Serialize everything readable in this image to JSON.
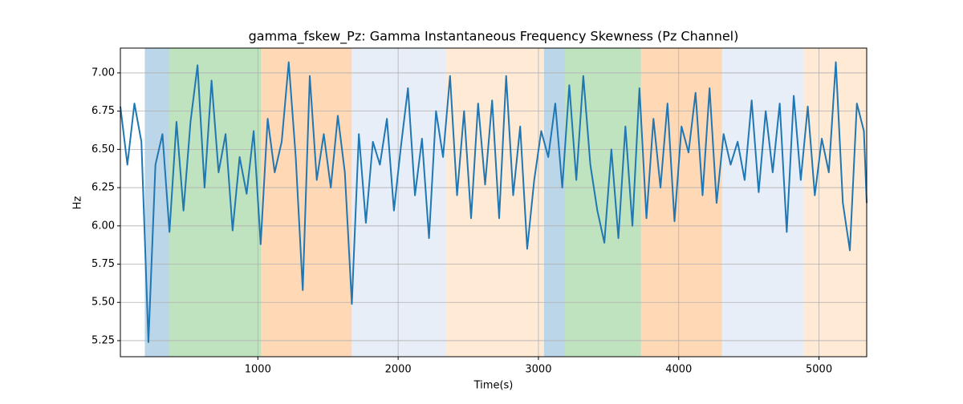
{
  "chart_data": {
    "type": "line",
    "title": "gamma_fskew_Pz: Gamma Instantaneous Frequency Skewness (Pz Channel)",
    "xlabel": "Time(s)",
    "ylabel": "Hz",
    "xlim": [
      20,
      5340
    ],
    "ylim": [
      5.145,
      7.162
    ],
    "xticks": [
      1000,
      2000,
      3000,
      4000,
      5000
    ],
    "yticks": [
      5.25,
      {
        "value": 5.5,
        "label": "5.50"
      },
      5.75,
      {
        "value": 6,
        "label": "6.00"
      },
      6.25,
      {
        "value": 6.5,
        "label": "6.50"
      },
      6.75,
      {
        "value": 7,
        "label": "7.00"
      }
    ],
    "grid": true,
    "spans": [
      {
        "xmin": 194,
        "xmax": 366,
        "color": "#1f77b4",
        "alpha": 0.3
      },
      {
        "xmin": 366,
        "xmax": 1023,
        "color": "#2ca02c",
        "alpha": 0.3
      },
      {
        "xmin": 1023,
        "xmax": 1669,
        "color": "#ff7f0e",
        "alpha": 0.3
      },
      {
        "xmin": 1669,
        "xmax": 2343,
        "color": "#aec7e8",
        "alpha": 0.3
      },
      {
        "xmin": 2343,
        "xmax": 3040,
        "color": "#ffbb78",
        "alpha": 0.3
      },
      {
        "xmin": 3040,
        "xmax": 3189,
        "color": "#1f77b4",
        "alpha": 0.3
      },
      {
        "xmin": 3189,
        "xmax": 3731,
        "color": "#2ca02c",
        "alpha": 0.3
      },
      {
        "xmin": 3731,
        "xmax": 4309,
        "color": "#ff7f0e",
        "alpha": 0.3
      },
      {
        "xmin": 4309,
        "xmax": 4891,
        "color": "#aec7e8",
        "alpha": 0.3
      },
      {
        "xmin": 4891,
        "xmax": 5340,
        "color": "#ffbb78",
        "alpha": 0.3
      }
    ],
    "series": [
      {
        "color": "#1f77b4",
        "x": [
          20,
          70,
          120,
          170,
          220,
          270,
          320,
          370,
          420,
          470,
          520,
          570,
          620,
          670,
          720,
          770,
          820,
          870,
          920,
          970,
          1020,
          1070,
          1120,
          1170,
          1220,
          1270,
          1320,
          1370,
          1420,
          1470,
          1520,
          1570,
          1620,
          1670,
          1720,
          1770,
          1820,
          1870,
          1920,
          1970,
          2020,
          2070,
          2120,
          2170,
          2220,
          2270,
          2320,
          2370,
          2420,
          2470,
          2520,
          2570,
          2620,
          2670,
          2720,
          2770,
          2820,
          2870,
          2920,
          2970,
          3020,
          3070,
          3120,
          3170,
          3220,
          3270,
          3320,
          3370,
          3420,
          3470,
          3520,
          3570,
          3620,
          3670,
          3720,
          3770,
          3820,
          3870,
          3920,
          3970,
          4020,
          4070,
          4120,
          4170,
          4220,
          4270,
          4320,
          4370,
          4420,
          4470,
          4520,
          4570,
          4620,
          4670,
          4720,
          4770,
          4820,
          4870,
          4920,
          4970,
          5020,
          5070,
          5120,
          5170,
          5220,
          5270,
          5320,
          5340
        ],
        "values": [
          6.78,
          6.4,
          6.8,
          6.55,
          5.24,
          6.4,
          6.6,
          5.96,
          6.68,
          6.1,
          6.68,
          7.05,
          6.25,
          6.95,
          6.35,
          6.6,
          5.97,
          6.45,
          6.21,
          6.62,
          5.88,
          6.7,
          6.35,
          6.55,
          7.07,
          6.45,
          5.58,
          6.98,
          6.3,
          6.6,
          6.25,
          6.72,
          6.35,
          5.49,
          6.6,
          6.02,
          6.55,
          6.4,
          6.7,
          6.1,
          6.52,
          6.9,
          6.2,
          6.57,
          5.92,
          6.75,
          6.45,
          6.98,
          6.2,
          6.75,
          6.05,
          6.8,
          6.27,
          6.82,
          6.05,
          6.98,
          6.2,
          6.65,
          5.85,
          6.3,
          6.62,
          6.45,
          6.8,
          6.25,
          6.92,
          6.3,
          6.98,
          6.4,
          6.1,
          5.89,
          6.5,
          5.92,
          6.65,
          6.0,
          6.9,
          6.05,
          6.7,
          6.25,
          6.8,
          6.03,
          6.65,
          6.48,
          6.87,
          6.2,
          6.9,
          6.15,
          6.6,
          6.4,
          6.55,
          6.3,
          6.82,
          6.22,
          6.75,
          6.35,
          6.8,
          5.96,
          6.85,
          6.3,
          6.78,
          6.2,
          6.57,
          6.35,
          7.07,
          6.15,
          5.84,
          6.8,
          6.62,
          6.15
        ]
      }
    ]
  }
}
